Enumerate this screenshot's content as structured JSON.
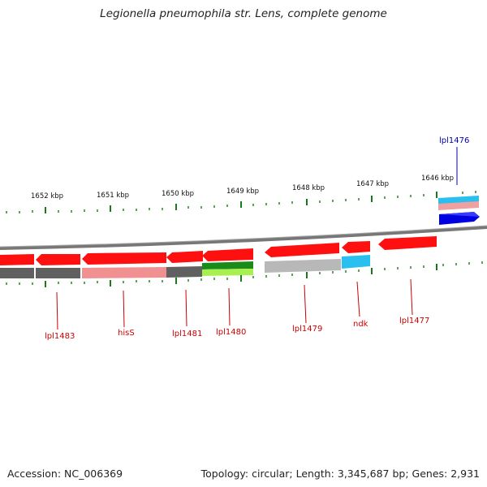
{
  "title": "Legionella pneumophila str. Lens, complete genome",
  "footer": {
    "accession": "Accession: NC_006369",
    "summary": "Topology: circular; Length: 3,345,687 bp; Genes: 2,931"
  },
  "colors": {
    "gene_forward": "#0000e0",
    "gene_reverse": "#ff0000",
    "label_reverse": "#cc0000",
    "label_forward": "#0000aa",
    "tick": "#1a7a1a",
    "backbone": "#777777"
  },
  "ticks": [
    "1652 kbp",
    "1651 kbp",
    "1650 kbp",
    "1649 kbp",
    "1648 kbp",
    "1647 kbp",
    "1646 kbp"
  ],
  "genes": [
    {
      "label": "lpl1476",
      "strand": "+"
    },
    {
      "label": "lpl1477",
      "strand": "-"
    },
    {
      "label": "ndk",
      "strand": "-"
    },
    {
      "label": "lpl1479",
      "strand": "-"
    },
    {
      "label": "lpl1480",
      "strand": "-"
    },
    {
      "label": "lpl1481",
      "strand": "-"
    },
    {
      "label": "hisS",
      "strand": "-"
    },
    {
      "label": "lpl1483",
      "strand": "-"
    }
  ]
}
